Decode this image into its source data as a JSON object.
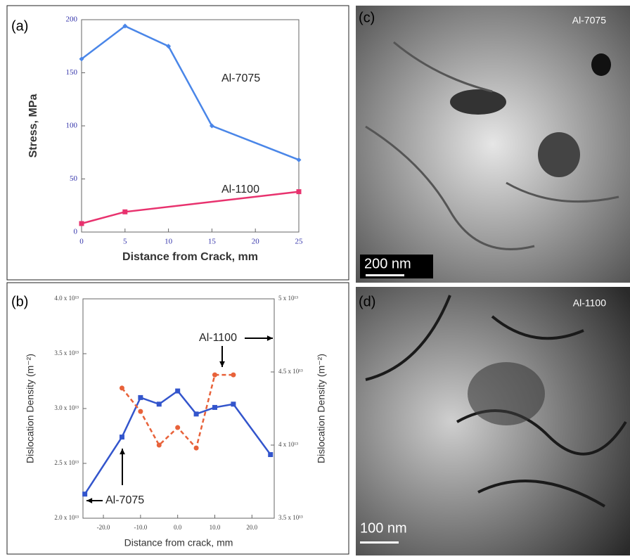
{
  "chart_data": [
    {
      "type": "line",
      "label": "(a)",
      "xlabel": "Distance from Crack, mm",
      "ylabel": "Stress, MPa",
      "xlim": [
        0,
        25
      ],
      "xticks": [
        0,
        5,
        10,
        15,
        20,
        25
      ],
      "ylim": [
        0,
        200
      ],
      "yticks": [
        0,
        50,
        100,
        150,
        200
      ],
      "series": [
        {
          "name": "Al-7075",
          "color": "#4a86e8",
          "marker": "diamond",
          "style": "solid",
          "x": [
            0,
            5,
            10,
            15,
            25
          ],
          "values": [
            163,
            194,
            175,
            100,
            68
          ]
        },
        {
          "name": "Al-1100",
          "color": "#e8326e",
          "marker": "square",
          "style": "solid",
          "x": [
            0,
            5,
            25
          ],
          "values": [
            8,
            19,
            38
          ]
        }
      ]
    },
    {
      "type": "line",
      "label": "(b)",
      "xlabel": "Distance from crack, mm",
      "ylabel": "Dislocation Density (m⁻²)",
      "y2label": "Dislocation Density (m⁻²)",
      "xlim": [
        -25.5,
        26
      ],
      "xticks": [
        {
          "value": -20,
          "label": "-20.0"
        },
        {
          "value": -10,
          "label": "-10.0"
        },
        {
          "value": 0,
          "label": "0.0"
        },
        {
          "value": 10,
          "label": "10.0"
        },
        {
          "value": 20,
          "label": "20.0"
        }
      ],
      "ylim": [
        20000000000000.0,
        40000000000000.0
      ],
      "yticks": [
        {
          "value": 20000000000000.0,
          "label": "2.0 x 10¹³"
        },
        {
          "value": 25000000000000.0,
          "label": "2.5 x 10¹³"
        },
        {
          "value": 30000000000000.0,
          "label": "3.0 x 10¹³"
        },
        {
          "value": 35000000000000.0,
          "label": "3.5 x 10¹³"
        },
        {
          "value": 40000000000000.0,
          "label": "4.0 x 10¹³"
        }
      ],
      "y2lim": [
        35000000000000.0,
        50000000000000.0
      ],
      "y2ticks": [
        {
          "value": 35000000000000.0,
          "label": "3.5 x 10¹³"
        },
        {
          "value": 40000000000000.0,
          "label": "4 x 10¹³"
        },
        {
          "value": 45000000000000.0,
          "label": "4.5 x 10¹³"
        },
        {
          "value": 50000000000000.0,
          "label": "5 x 10¹³"
        }
      ],
      "series": [
        {
          "name": "Al-7075",
          "color": "#3355cc",
          "marker": "square",
          "style": "solid",
          "x": [
            -25,
            -15,
            -10,
            -5,
            0,
            5,
            10,
            15,
            25
          ],
          "values": [
            22200000000000.0,
            27400000000000.0,
            31000000000000.0,
            30400000000000.0,
            31600000000000.0,
            29500000000000.0,
            30100000000000.0,
            30400000000000.0,
            25800000000000.0
          ]
        },
        {
          "name": "Al-1100",
          "color": "#e8623a",
          "marker": "circle",
          "style": "dashed",
          "axis": "y2",
          "x": [
            -15,
            -10,
            -5,
            0,
            5,
            10,
            15
          ],
          "values": [
            43900000000000.0,
            42300000000000.0,
            40000000000000.0,
            41200000000000.0,
            39800000000000.0,
            44800000000000.0,
            44800000000000.0
          ]
        }
      ]
    }
  ],
  "images": [
    {
      "label": "(c)",
      "caption": "Al-7075",
      "scale_bar": "200 nm"
    },
    {
      "label": "(d)",
      "caption": "Al-1100",
      "scale_bar": "100 nm"
    }
  ]
}
